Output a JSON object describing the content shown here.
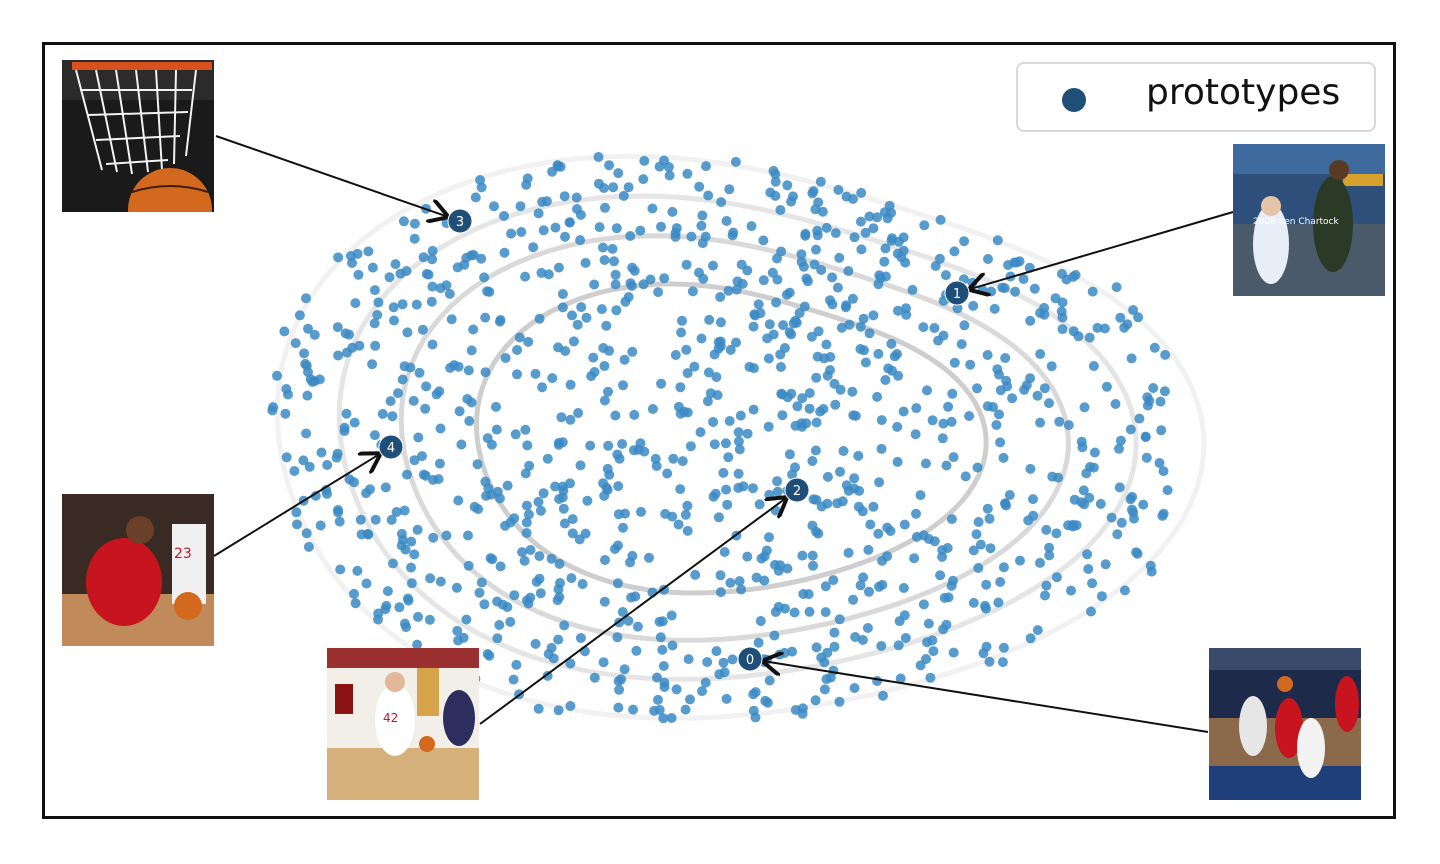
{
  "chart_data": {
    "type": "scatter",
    "title": "",
    "xlabel": "",
    "ylabel": "",
    "grid": false,
    "legend_placement": "top-right",
    "legend": [
      {
        "label": "prototypes",
        "color": "#1f4e79"
      }
    ],
    "colors": {
      "embedding_points": "#3b8ac4",
      "prototypes": "#1f4e79",
      "contours": "#bdbdbd",
      "arrows": "#111111"
    },
    "prototypes": [
      {
        "id": "0",
        "label": "0",
        "image": "basketball-game-action-photo"
      },
      {
        "id": "1",
        "label": "1",
        "image": "basketball-dunk-photo"
      },
      {
        "id": "2",
        "label": "2",
        "image": "basketball-player-dribbling-photo"
      },
      {
        "id": "3",
        "label": "3",
        "image": "basketball-hoop-net-photo"
      },
      {
        "id": "4",
        "label": "4",
        "image": "basketball-player-red-uniform-photo"
      }
    ],
    "watermark_text": "2008 Ken Chartock"
  }
}
